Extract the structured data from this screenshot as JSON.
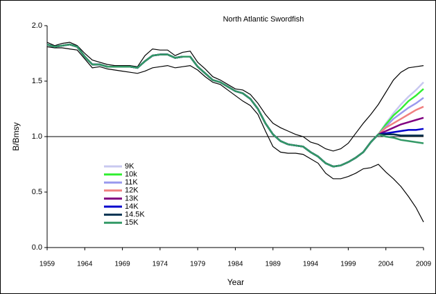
{
  "chart_data": {
    "type": "line",
    "title": "North Atlantic Swordfish",
    "x_label": "Year",
    "y_label": "B/Bmsy",
    "x": [
      1959,
      1960,
      1961,
      1962,
      1963,
      1964,
      1965,
      1966,
      1967,
      1968,
      1969,
      1970,
      1971,
      1972,
      1973,
      1974,
      1975,
      1976,
      1977,
      1978,
      1979,
      1980,
      1981,
      1982,
      1983,
      1984,
      1985,
      1986,
      1987,
      1988,
      1989,
      1990,
      1991,
      1992,
      1993,
      1994,
      1995,
      1996,
      1997,
      1998,
      1999,
      2000,
      2001,
      2002,
      2003,
      2004,
      2005,
      2006,
      2007,
      2008,
      2009
    ],
    "xlim": [
      1959,
      2009
    ],
    "xticks": [
      1959,
      1964,
      1969,
      1974,
      1979,
      1984,
      1989,
      1994,
      1999,
      2004,
      2009
    ],
    "ylim": [
      0,
      2
    ],
    "yticks": [
      {
        "value": 0,
        "label": "0.0"
      },
      {
        "value": 0.5,
        "label": "0.5"
      },
      {
        "value": 1,
        "label": "1.0"
      },
      {
        "value": 1.5,
        "label": "1.5"
      },
      {
        "value": 2,
        "label": "2.0"
      }
    ],
    "hline": 1,
    "series": [
      {
        "color": "#000000",
        "values": [
          1.85,
          1.82,
          1.84,
          1.85,
          1.82,
          1.75,
          1.69,
          1.67,
          1.65,
          1.64,
          1.64,
          1.64,
          1.63,
          1.73,
          1.79,
          1.78,
          1.78,
          1.73,
          1.76,
          1.77,
          1.67,
          1.61,
          1.54,
          1.51,
          1.47,
          1.43,
          1.42,
          1.38,
          1.3,
          1.2,
          1.12,
          1.08,
          1.05,
          1.02,
          1.0,
          0.95,
          0.93,
          0.89,
          0.87,
          0.89,
          0.94,
          1.03,
          1.12,
          1.2,
          1.29,
          1.4,
          1.51,
          1.58,
          1.62,
          1.63,
          1.64
        ]
      },
      {
        "color": "#000000",
        "values": [
          1.81,
          1.8,
          1.8,
          1.79,
          1.78,
          1.7,
          1.62,
          1.63,
          1.61,
          1.6,
          1.59,
          1.58,
          1.57,
          1.59,
          1.62,
          1.63,
          1.64,
          1.62,
          1.63,
          1.64,
          1.6,
          1.54,
          1.49,
          1.47,
          1.42,
          1.37,
          1.32,
          1.28,
          1.2,
          1.05,
          0.91,
          0.86,
          0.85,
          0.85,
          0.84,
          0.8,
          0.76,
          0.67,
          0.62,
          0.62,
          0.64,
          0.67,
          0.71,
          0.72,
          0.75,
          0.68,
          0.62,
          0.55,
          0.46,
          0.36,
          0.23
        ]
      },
      {
        "name": "9K",
        "color": "#c8c8f0",
        "values": [
          1.83,
          1.81,
          1.82,
          1.83,
          1.81,
          1.72,
          1.65,
          1.65,
          1.63,
          1.63,
          1.63,
          1.63,
          1.62,
          1.68,
          1.73,
          1.74,
          1.74,
          1.71,
          1.72,
          1.72,
          1.63,
          1.57,
          1.51,
          1.49,
          1.45,
          1.41,
          1.39,
          1.34,
          1.25,
          1.12,
          1.02,
          0.96,
          0.93,
          0.92,
          0.91,
          0.86,
          0.82,
          0.76,
          0.73,
          0.74,
          0.77,
          0.81,
          0.86,
          0.95,
          1.02,
          1.12,
          1.21,
          1.29,
          1.36,
          1.42,
          1.49
        ]
      },
      {
        "name": "10k",
        "color": "#33ee33",
        "values": [
          1.83,
          1.81,
          1.82,
          1.83,
          1.81,
          1.72,
          1.65,
          1.65,
          1.63,
          1.63,
          1.63,
          1.63,
          1.62,
          1.68,
          1.73,
          1.74,
          1.74,
          1.71,
          1.72,
          1.72,
          1.63,
          1.57,
          1.51,
          1.49,
          1.45,
          1.41,
          1.39,
          1.34,
          1.25,
          1.12,
          1.02,
          0.96,
          0.93,
          0.92,
          0.91,
          0.86,
          0.82,
          0.76,
          0.73,
          0.74,
          0.77,
          0.81,
          0.86,
          0.95,
          1.02,
          1.11,
          1.19,
          1.25,
          1.32,
          1.37,
          1.43
        ]
      },
      {
        "name": "11K",
        "color": "#9999ee",
        "values": [
          1.83,
          1.81,
          1.82,
          1.83,
          1.81,
          1.72,
          1.65,
          1.65,
          1.63,
          1.63,
          1.63,
          1.63,
          1.62,
          1.68,
          1.73,
          1.74,
          1.74,
          1.71,
          1.72,
          1.72,
          1.63,
          1.57,
          1.51,
          1.49,
          1.45,
          1.41,
          1.39,
          1.34,
          1.25,
          1.12,
          1.02,
          0.96,
          0.93,
          0.92,
          0.91,
          0.86,
          0.82,
          0.76,
          0.73,
          0.74,
          0.77,
          0.81,
          0.86,
          0.95,
          1.02,
          1.09,
          1.16,
          1.21,
          1.26,
          1.3,
          1.35
        ]
      },
      {
        "name": "12K",
        "color": "#f08080",
        "values": [
          1.83,
          1.81,
          1.82,
          1.83,
          1.81,
          1.72,
          1.65,
          1.65,
          1.63,
          1.63,
          1.63,
          1.63,
          1.62,
          1.68,
          1.73,
          1.74,
          1.74,
          1.71,
          1.72,
          1.72,
          1.63,
          1.57,
          1.51,
          1.49,
          1.45,
          1.41,
          1.39,
          1.34,
          1.25,
          1.12,
          1.02,
          0.96,
          0.93,
          0.92,
          0.91,
          0.86,
          0.82,
          0.76,
          0.73,
          0.74,
          0.77,
          0.81,
          0.86,
          0.95,
          1.02,
          1.08,
          1.12,
          1.16,
          1.2,
          1.24,
          1.27
        ]
      },
      {
        "name": "13K",
        "color": "#800080",
        "values": [
          1.83,
          1.81,
          1.82,
          1.83,
          1.81,
          1.72,
          1.65,
          1.65,
          1.63,
          1.63,
          1.63,
          1.63,
          1.62,
          1.68,
          1.73,
          1.74,
          1.74,
          1.71,
          1.72,
          1.72,
          1.63,
          1.57,
          1.51,
          1.49,
          1.45,
          1.41,
          1.39,
          1.34,
          1.25,
          1.12,
          1.02,
          0.96,
          0.93,
          0.92,
          0.91,
          0.86,
          0.82,
          0.76,
          0.73,
          0.74,
          0.77,
          0.81,
          0.86,
          0.95,
          1.02,
          1.05,
          1.08,
          1.11,
          1.13,
          1.15,
          1.17
        ]
      },
      {
        "name": "14K",
        "color": "#0000cc",
        "values": [
          1.83,
          1.81,
          1.82,
          1.83,
          1.81,
          1.72,
          1.65,
          1.65,
          1.63,
          1.63,
          1.63,
          1.63,
          1.62,
          1.68,
          1.73,
          1.74,
          1.74,
          1.71,
          1.72,
          1.72,
          1.63,
          1.57,
          1.51,
          1.49,
          1.45,
          1.41,
          1.39,
          1.34,
          1.25,
          1.12,
          1.02,
          0.96,
          0.93,
          0.92,
          0.91,
          0.86,
          0.82,
          0.76,
          0.73,
          0.74,
          0.77,
          0.81,
          0.86,
          0.95,
          1.02,
          1.03,
          1.04,
          1.05,
          1.06,
          1.06,
          1.07
        ]
      },
      {
        "name": "14.5K",
        "color": "#003050",
        "values": [
          1.83,
          1.81,
          1.82,
          1.83,
          1.81,
          1.72,
          1.65,
          1.65,
          1.63,
          1.63,
          1.63,
          1.63,
          1.62,
          1.68,
          1.73,
          1.74,
          1.74,
          1.71,
          1.72,
          1.72,
          1.63,
          1.57,
          1.51,
          1.49,
          1.45,
          1.41,
          1.39,
          1.34,
          1.25,
          1.12,
          1.02,
          0.96,
          0.93,
          0.92,
          0.91,
          0.86,
          0.82,
          0.76,
          0.73,
          0.74,
          0.77,
          0.81,
          0.86,
          0.95,
          1.02,
          1.02,
          1.02,
          1.01,
          1.01,
          1.01,
          1.01
        ]
      },
      {
        "name": "15K",
        "color": "#339966",
        "values": [
          1.83,
          1.81,
          1.82,
          1.83,
          1.81,
          1.72,
          1.65,
          1.65,
          1.63,
          1.63,
          1.63,
          1.63,
          1.62,
          1.68,
          1.73,
          1.74,
          1.74,
          1.71,
          1.72,
          1.72,
          1.63,
          1.57,
          1.51,
          1.49,
          1.45,
          1.41,
          1.39,
          1.34,
          1.25,
          1.12,
          1.02,
          0.96,
          0.93,
          0.92,
          0.91,
          0.86,
          0.82,
          0.76,
          0.73,
          0.74,
          0.77,
          0.81,
          0.86,
          0.95,
          1.02,
          1.0,
          0.99,
          0.97,
          0.96,
          0.95,
          0.94
        ]
      }
    ]
  }
}
